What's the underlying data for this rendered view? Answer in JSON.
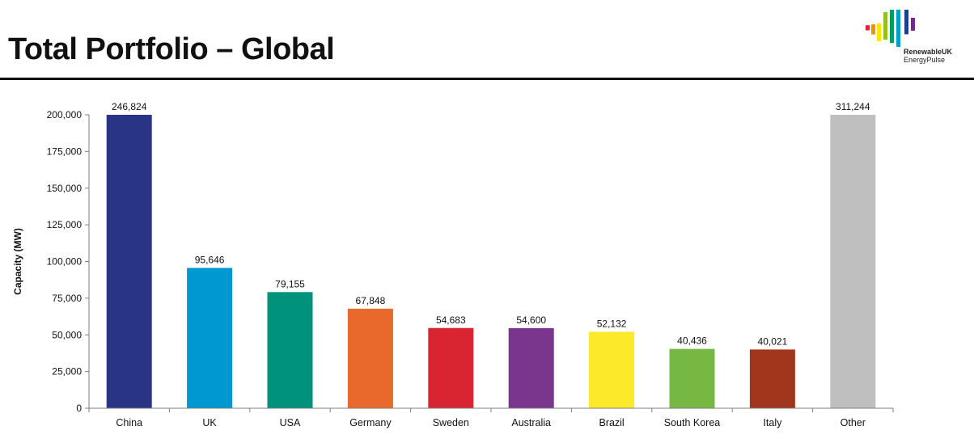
{
  "page": {
    "title": "Total Portfolio – Global"
  },
  "logo": {
    "name": "RenewableUK",
    "sub": "EnergyPulse",
    "colors": [
      "#e4262a",
      "#f39200",
      "#ffe600",
      "#95c11f",
      "#009e60",
      "#00a0c6",
      "#1d3f8f",
      "#6f2a8f"
    ]
  },
  "chart_data": {
    "type": "bar",
    "categories": [
      "China",
      "UK",
      "USA",
      "Germany",
      "Sweden",
      "Australia",
      "Brazil",
      "South Korea",
      "Italy",
      "Other"
    ],
    "values": [
      246824,
      95646,
      79155,
      67848,
      54683,
      54600,
      52132,
      40436,
      40021,
      311244
    ],
    "value_labels": [
      "246,824",
      "95,646",
      "79,155",
      "67,848",
      "54,683",
      "54,600",
      "52,132",
      "40,436",
      "40,021",
      "311,244"
    ],
    "colors": [
      "#2a3485",
      "#0098d1",
      "#00927a",
      "#e9692c",
      "#d92431",
      "#7a358d",
      "#fbe92a",
      "#77b843",
      "#a2361c",
      "#bfbfbf"
    ],
    "ylabel": "Capacity (MW)",
    "xlabel": "",
    "ylim": [
      0,
      200000
    ],
    "yticks": [
      0,
      25000,
      50000,
      75000,
      100000,
      125000,
      150000,
      175000,
      200000
    ],
    "ytick_labels": [
      "0",
      "25,000",
      "50,000",
      "75,000",
      "100,000",
      "125,000",
      "150,000",
      "175,000",
      "200,000"
    ],
    "bars_clipped_at_axis_max": true,
    "grid": false,
    "legend": "none"
  }
}
